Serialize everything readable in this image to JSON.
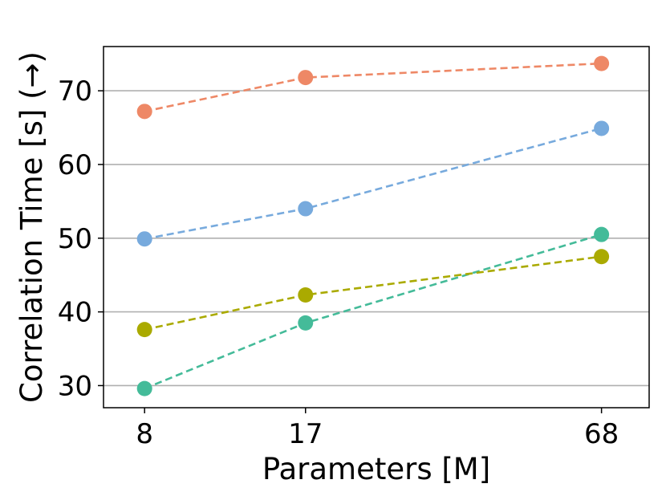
{
  "chart_data": {
    "type": "line",
    "title": "",
    "xlabel": "Parameters [M]",
    "ylabel": "Correlation Time [s] (→)",
    "x": [
      8,
      17,
      68
    ],
    "x_tick_labels": [
      "8",
      "17",
      "68"
    ],
    "x_scale": "log",
    "xlim": [
      6.6,
      85
    ],
    "ylim": [
      27,
      76
    ],
    "y_ticks": [
      30,
      40,
      50,
      60,
      70
    ],
    "grid": "y",
    "legend": "none",
    "series": [
      {
        "color": "#ee8866",
        "values": [
          67.2,
          71.8,
          73.7
        ]
      },
      {
        "color": "#77aadd",
        "values": [
          49.9,
          54.0,
          64.9
        ]
      },
      {
        "color": "#44bb99",
        "values": [
          29.6,
          38.5,
          50.5
        ]
      },
      {
        "color": "#aaaa00",
        "values": [
          37.6,
          42.3,
          47.5
        ]
      }
    ]
  }
}
